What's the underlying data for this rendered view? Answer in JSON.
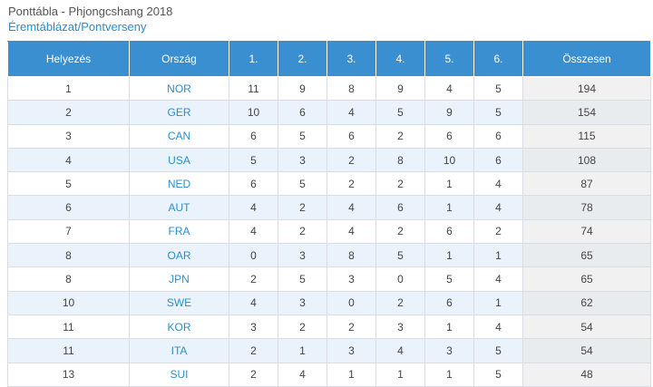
{
  "page": {
    "title": "Ponttábla - Phjongcshang 2018",
    "subtitle": "Éremtáblázat/Pontverseny"
  },
  "table": {
    "headers": [
      "Helyezés",
      "Ország",
      "1.",
      "2.",
      "3.",
      "4.",
      "5.",
      "6.",
      "Összesen"
    ],
    "rows": [
      [
        "1",
        "NOR",
        "11",
        "9",
        "8",
        "9",
        "4",
        "5",
        "194"
      ],
      [
        "2",
        "GER",
        "10",
        "6",
        "4",
        "5",
        "9",
        "5",
        "154"
      ],
      [
        "3",
        "CAN",
        "6",
        "5",
        "6",
        "2",
        "6",
        "6",
        "115"
      ],
      [
        "4",
        "USA",
        "5",
        "3",
        "2",
        "8",
        "10",
        "6",
        "108"
      ],
      [
        "5",
        "NED",
        "6",
        "5",
        "2",
        "2",
        "1",
        "4",
        "87"
      ],
      [
        "6",
        "AUT",
        "4",
        "2",
        "4",
        "6",
        "1",
        "4",
        "78"
      ],
      [
        "7",
        "FRA",
        "4",
        "2",
        "4",
        "2",
        "6",
        "2",
        "74"
      ],
      [
        "8",
        "OAR",
        "0",
        "3",
        "8",
        "5",
        "1",
        "1",
        "65"
      ],
      [
        "8",
        "JPN",
        "2",
        "5",
        "3",
        "0",
        "5",
        "4",
        "65"
      ],
      [
        "10",
        "SWE",
        "4",
        "3",
        "0",
        "2",
        "6",
        "1",
        "62"
      ],
      [
        "11",
        "KOR",
        "3",
        "2",
        "2",
        "3",
        "1",
        "4",
        "54"
      ],
      [
        "11",
        "ITA",
        "2",
        "1",
        "3",
        "4",
        "3",
        "5",
        "54"
      ],
      [
        "13",
        "SUI",
        "2",
        "4",
        "1",
        "1",
        "1",
        "5",
        "48"
      ]
    ]
  }
}
